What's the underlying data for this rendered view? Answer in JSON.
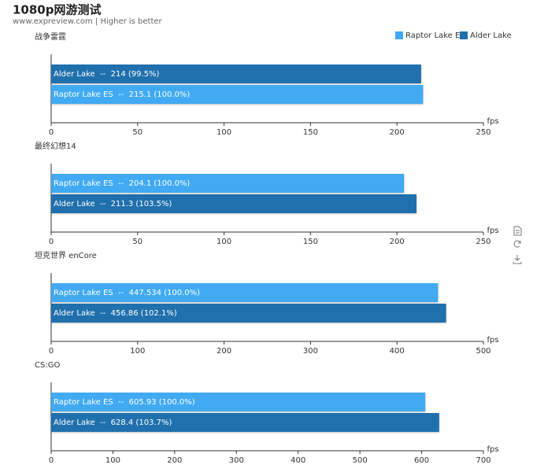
{
  "title": "1080p网游测试",
  "subtitle": "www.expreview.com | Higher is better",
  "chart_data": [
    {
      "type": "bar",
      "orientation": "horizontal",
      "title": "战争雷霆",
      "xlabel": "fps",
      "series": [
        {
          "name": "Alder Lake",
          "color": "#2070ad",
          "values": [
            214
          ],
          "value_labels": [
            "Alder Lake  --  214 (99.5%)"
          ]
        },
        {
          "name": "Raptor Lake ES",
          "color": "#41aaf2",
          "values": [
            215.1
          ],
          "value_labels": [
            "Raptor Lake ES  --  215.1 (100.0%)"
          ]
        }
      ],
      "xlim": [
        0,
        250
      ],
      "xticks": [
        0,
        50,
        100,
        150,
        200,
        250
      ]
    },
    {
      "type": "bar",
      "orientation": "horizontal",
      "title": "最终幻想14",
      "xlabel": "fps",
      "series": [
        {
          "name": "Raptor Lake ES",
          "color": "#41aaf2",
          "values": [
            204.1
          ],
          "value_labels": [
            "Raptor Lake ES  --  204.1 (100.0%)"
          ]
        },
        {
          "name": "Alder Lake",
          "color": "#2070ad",
          "values": [
            211.3
          ],
          "value_labels": [
            "Alder Lake  --  211.3 (103.5%)"
          ]
        }
      ],
      "xlim": [
        0,
        250
      ],
      "xticks": [
        0,
        50,
        100,
        150,
        200,
        250
      ]
    },
    {
      "type": "bar",
      "orientation": "horizontal",
      "title": "坦克世界 enCore",
      "xlabel": "fps",
      "series": [
        {
          "name": "Raptor Lake ES",
          "color": "#41aaf2",
          "values": [
            447.534
          ],
          "value_labels": [
            "Raptor Lake ES  --  447.534 (100.0%)"
          ]
        },
        {
          "name": "Alder Lake",
          "color": "#2070ad",
          "values": [
            456.86
          ],
          "value_labels": [
            "Alder Lake  --  456.86 (102.1%)"
          ]
        }
      ],
      "xlim": [
        0,
        500
      ],
      "xticks": [
        0,
        100,
        200,
        300,
        400,
        500
      ]
    },
    {
      "type": "bar",
      "orientation": "horizontal",
      "title": "CS:GO",
      "xlabel": "fps",
      "series": [
        {
          "name": "Raptor Lake ES",
          "color": "#41aaf2",
          "values": [
            605.93
          ],
          "value_labels": [
            "Raptor Lake ES  --  605.93 (100.0%)"
          ]
        },
        {
          "name": "Alder Lake",
          "color": "#2070ad",
          "values": [
            628.4
          ],
          "value_labels": [
            "Alder Lake  --  628.4 (103.7%)"
          ]
        }
      ],
      "xlim": [
        0,
        700
      ],
      "xticks": [
        0,
        100,
        200,
        300,
        400,
        500,
        600,
        700
      ]
    }
  ]
}
